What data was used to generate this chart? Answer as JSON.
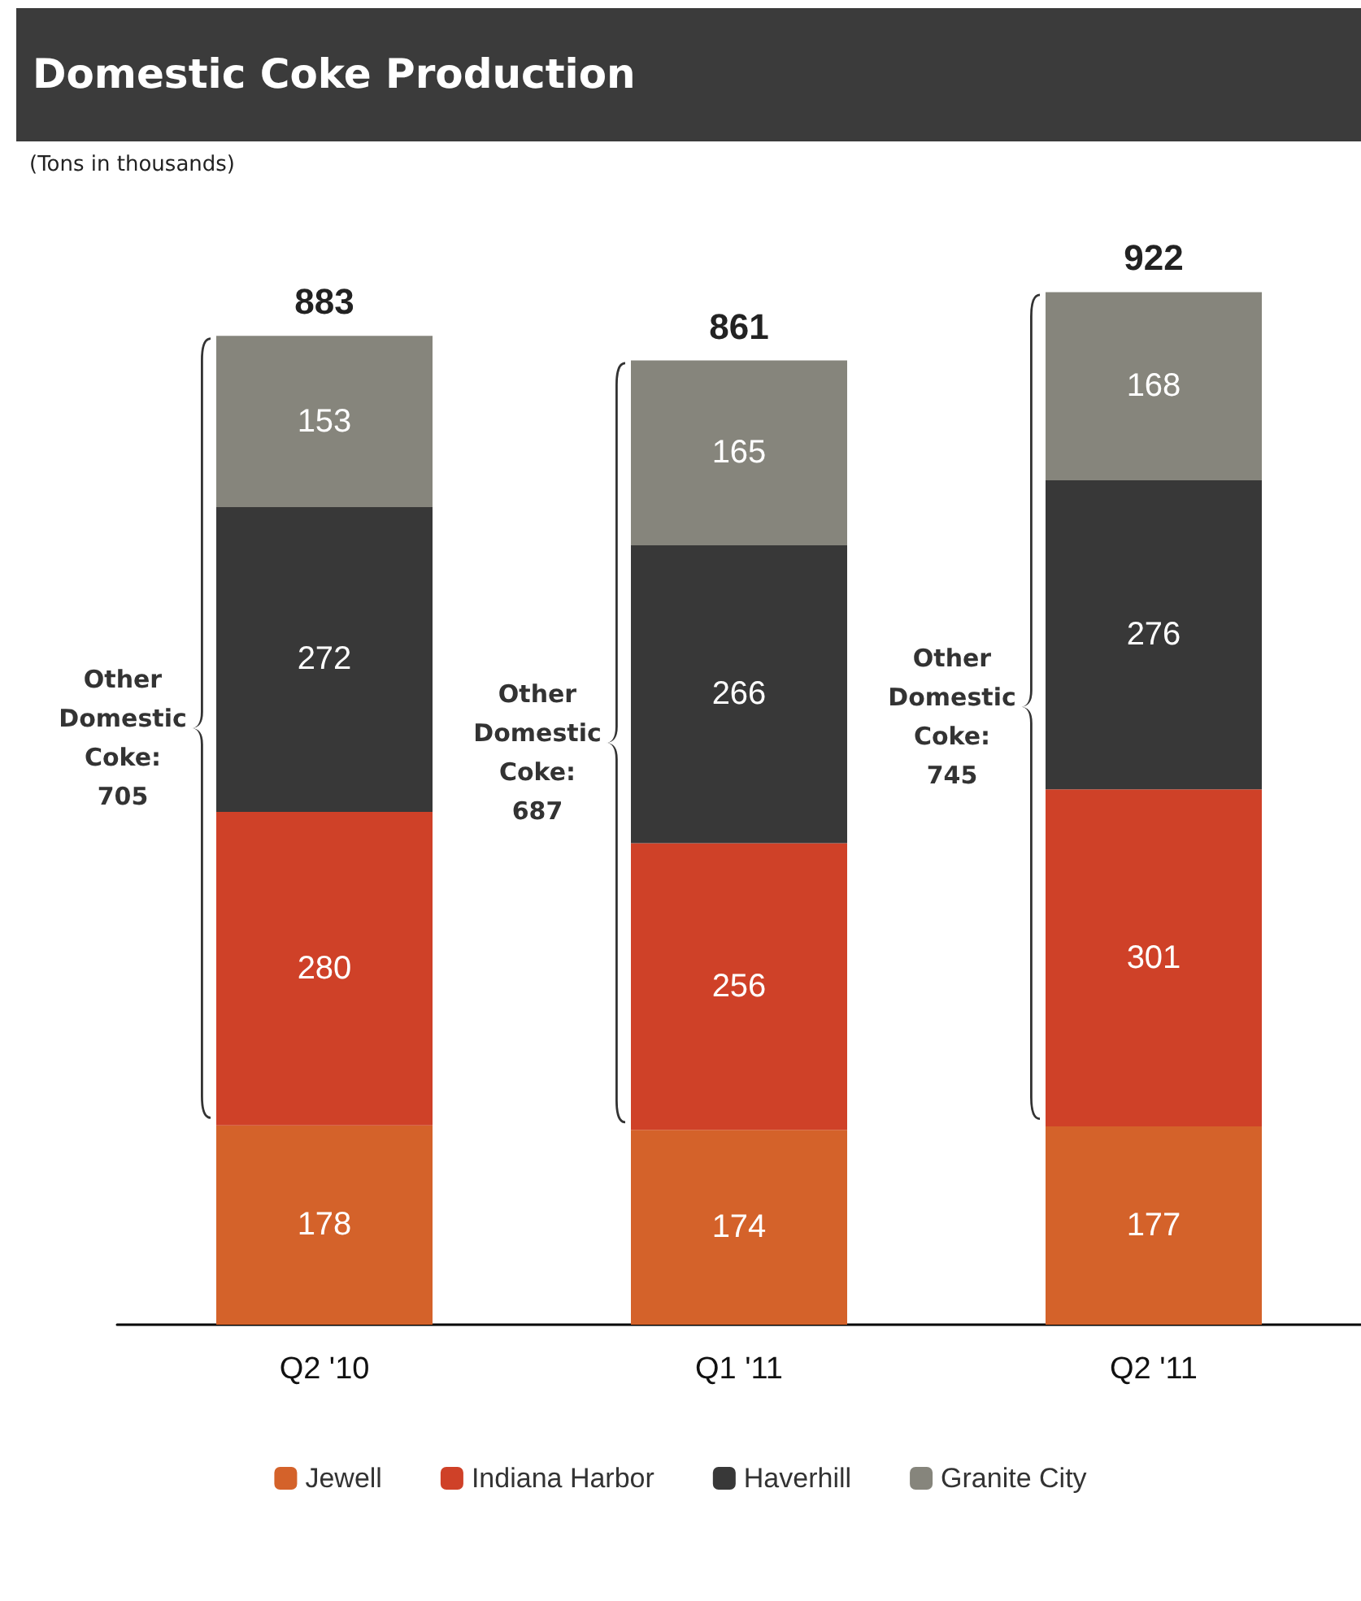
{
  "chart_data": {
    "type": "bar",
    "title": "Domestic Coke Production",
    "subtitle": "(Tons in thousands)",
    "categories": [
      "Q2 '10",
      "Q1 '11",
      "Q2 '11"
    ],
    "series": [
      {
        "name": "Jewell",
        "color": "#d4622a",
        "values": [
          178,
          174,
          177
        ]
      },
      {
        "name": "Indiana Harbor",
        "color": "#cf4128",
        "values": [
          280,
          256,
          301
        ]
      },
      {
        "name": "Haverhill",
        "color": "#383838",
        "values": [
          272,
          266,
          276
        ]
      },
      {
        "name": "Granite City",
        "color": "#86857c",
        "values": [
          153,
          165,
          168
        ]
      }
    ],
    "stacked": true,
    "data_labels": true,
    "totals": [
      "883",
      "861",
      "922"
    ],
    "annotations": [
      "Other Domestic Coke: 705",
      "Other Domestic Coke: 687",
      "Other Domestic Coke: 745"
    ],
    "legend": "bottom",
    "grid": false
  }
}
